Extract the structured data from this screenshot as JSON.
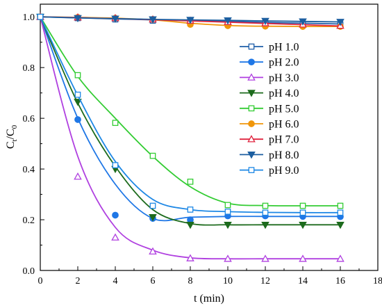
{
  "chart_data": {
    "type": "line",
    "title": "",
    "xlabel": "t (min)",
    "ylabel_main": "C",
    "ylabel_sub1": "t",
    "ylabel_mid": "/C",
    "ylabel_sub2": "0",
    "xlim": [
      0,
      18
    ],
    "ylim": [
      0,
      1.05
    ],
    "xticks": [
      "0",
      "2",
      "4",
      "6",
      "8",
      "10",
      "12",
      "14",
      "16",
      "18"
    ],
    "yticks": [
      "0.0",
      "0.2",
      "0.4",
      "0.6",
      "0.8",
      "1.0"
    ],
    "legend_position": "right",
    "series": [
      {
        "name": "pH 1.0",
        "color": "#1f5fa8",
        "marker": "square-open",
        "x": [
          0,
          2,
          4,
          6,
          8,
          10,
          12,
          14,
          16
        ],
        "y": [
          1.0,
          0.995,
          0.99,
          0.985,
          0.982,
          0.98,
          0.975,
          0.972,
          0.97
        ],
        "fit": [
          1.0,
          0.996,
          0.992,
          0.988,
          0.985,
          0.982,
          0.978,
          0.975,
          0.972
        ]
      },
      {
        "name": "pH 2.0",
        "color": "#1f77e6",
        "marker": "circle-filled",
        "x": [
          0,
          2,
          4,
          6,
          8,
          10,
          12,
          14,
          16
        ],
        "y": [
          1.0,
          0.595,
          0.218,
          0.205,
          0.2,
          0.215,
          0.215,
          0.213,
          0.212
        ],
        "fit": [
          1.0,
          0.6,
          0.34,
          0.205,
          0.21,
          0.213,
          0.213,
          0.213,
          0.213
        ]
      },
      {
        "name": "pH 3.0",
        "color": "#b040e0",
        "marker": "triangle-open",
        "x": [
          0,
          2,
          4,
          6,
          8,
          10,
          12,
          14,
          16
        ],
        "y": [
          1.0,
          0.37,
          0.13,
          0.075,
          0.048,
          0.046,
          0.046,
          0.046,
          0.046
        ],
        "fit": [
          1.0,
          0.45,
          0.17,
          0.08,
          0.05,
          0.046,
          0.046,
          0.046,
          0.046
        ]
      },
      {
        "name": "pH 4.0",
        "color": "#1d6b1d",
        "marker": "triangle-down-filled",
        "x": [
          0,
          2,
          4,
          6,
          8,
          10,
          12,
          14,
          16
        ],
        "y": [
          1.0,
          0.665,
          0.4,
          0.21,
          0.18,
          0.18,
          0.18,
          0.18,
          0.18
        ],
        "fit": [
          1.0,
          0.66,
          0.41,
          0.24,
          0.185,
          0.18,
          0.18,
          0.18,
          0.18
        ]
      },
      {
        "name": "pH 5.0",
        "color": "#33cc33",
        "marker": "square-open",
        "x": [
          0,
          2,
          4,
          6,
          8,
          10,
          12,
          14,
          16
        ],
        "y": [
          1.0,
          0.77,
          0.582,
          0.452,
          0.35,
          0.258,
          0.255,
          0.255,
          0.255
        ],
        "fit": [
          1.0,
          0.765,
          0.6,
          0.45,
          0.33,
          0.265,
          0.256,
          0.255,
          0.255
        ]
      },
      {
        "name": "pH 6.0",
        "color": "#f0960a",
        "marker": "circle-filled",
        "x": [
          0,
          2,
          4,
          6,
          8,
          10,
          12,
          14,
          16
        ],
        "y": [
          1.0,
          0.998,
          0.995,
          0.99,
          0.97,
          0.965,
          0.963,
          0.962,
          0.962
        ],
        "fit": [
          1.0,
          0.998,
          0.995,
          0.988,
          0.975,
          0.966,
          0.963,
          0.962,
          0.962
        ]
      },
      {
        "name": "pH 7.0",
        "color": "#e0243f",
        "marker": "triangle-open",
        "x": [
          0,
          2,
          4,
          6,
          8,
          10,
          12,
          14,
          16
        ],
        "y": [
          1.0,
          0.998,
          0.995,
          0.99,
          0.985,
          0.98,
          0.975,
          0.97,
          0.965
        ],
        "fit": [
          1.0,
          0.997,
          0.993,
          0.989,
          0.984,
          0.979,
          0.974,
          0.969,
          0.964
        ]
      },
      {
        "name": "pH 8.0",
        "color": "#1d5fa0",
        "marker": "triangle-down-filled",
        "x": [
          0,
          2,
          4,
          6,
          8,
          10,
          12,
          14,
          16
        ],
        "y": [
          1.0,
          0.995,
          0.993,
          0.99,
          0.988,
          0.986,
          0.984,
          0.982,
          0.98
        ],
        "fit": [
          1.0,
          0.996,
          0.993,
          0.99,
          0.988,
          0.986,
          0.984,
          0.982,
          0.98
        ]
      },
      {
        "name": "pH 9.0",
        "color": "#1e88e5",
        "marker": "square-open",
        "x": [
          0,
          2,
          4,
          6,
          8,
          10,
          12,
          14,
          16
        ],
        "y": [
          1.0,
          0.693,
          0.415,
          0.255,
          0.24,
          0.232,
          0.228,
          0.228,
          0.228
        ],
        "fit": [
          1.0,
          0.69,
          0.43,
          0.28,
          0.24,
          0.232,
          0.229,
          0.228,
          0.228
        ]
      }
    ]
  }
}
